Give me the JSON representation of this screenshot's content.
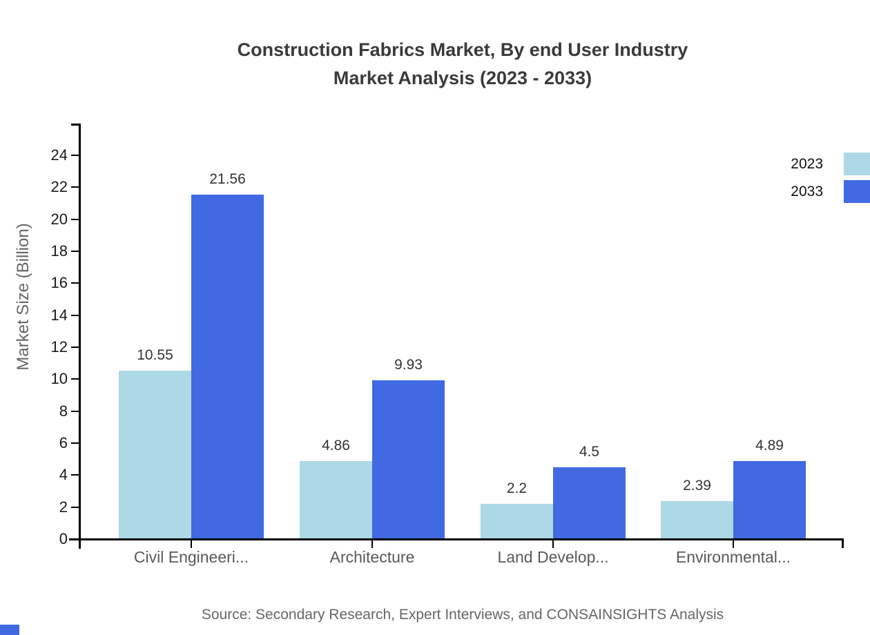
{
  "title": {
    "line1": "Construction Fabrics Market, By end User Industry",
    "line2": "Market Analysis (2023 - 2033)"
  },
  "source": "Source: Secondary Research, Expert Interviews, and CONSAINSIGHTS Analysis",
  "colors": {
    "bar_2023": "#add8e6",
    "bar_2033": "#4169e1",
    "accent": "#4169e1",
    "axis": "#000000",
    "category_text": "#595959",
    "value_text": "#333333"
  },
  "chart_data": {
    "type": "bar",
    "title": "Construction Fabrics Market, By end User Industry Market Analysis (2023 - 2033)",
    "categories": [
      "Civil Engineeri...",
      "Architecture",
      "Land Develop...",
      "Environmental..."
    ],
    "series": [
      {
        "name": "2023",
        "color": "#add8e6",
        "values": [
          10.55,
          4.86,
          2.2,
          2.39
        ]
      },
      {
        "name": "2033",
        "color": "#4169e1",
        "values": [
          21.56,
          9.93,
          4.5,
          4.89
        ]
      }
    ],
    "xlabel": "",
    "ylabel": "Market Size (Billion)",
    "ylim": [
      0,
      26
    ],
    "yticks": [
      0,
      2,
      4,
      6,
      8,
      10,
      12,
      14,
      16,
      18,
      20,
      22,
      24
    ],
    "grid": false,
    "legend_position": "top-right",
    "value_labels": true
  }
}
